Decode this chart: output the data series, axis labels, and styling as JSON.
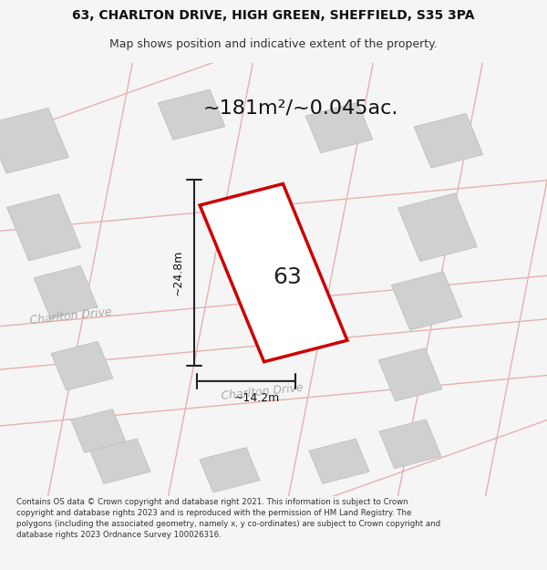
{
  "title_line1": "63, CHARLTON DRIVE, HIGH GREEN, SHEFFIELD, S35 3PA",
  "title_line2": "Map shows position and indicative extent of the property.",
  "area_text": "~181m²/~0.045ac.",
  "number_label": "63",
  "dim_height": "~24.8m",
  "dim_width": "~14.2m",
  "road_label1": "Charlton Drive",
  "road_label2": "Charlton Drive",
  "footer_text": "Contains OS data © Crown copyright and database right 2021. This information is subject to Crown copyright and database rights 2023 and is reproduced with the permission of HM Land Registry. The polygons (including the associated geometry, namely x, y co-ordinates) are subject to Crown copyright and database rights 2023 Ordnance Survey 100026316.",
  "bg_color": "#f5f5f5",
  "map_bg": "#ffffff",
  "plot_outline_color": "#cc0000",
  "plot_fill_color": "#ffffff",
  "building_color": "#d0d0d0",
  "road_line_color": "#e8b0b0",
  "dim_line_color": "#222222",
  "text_color": "#333333",
  "road_text_color": "#aaaaaa"
}
